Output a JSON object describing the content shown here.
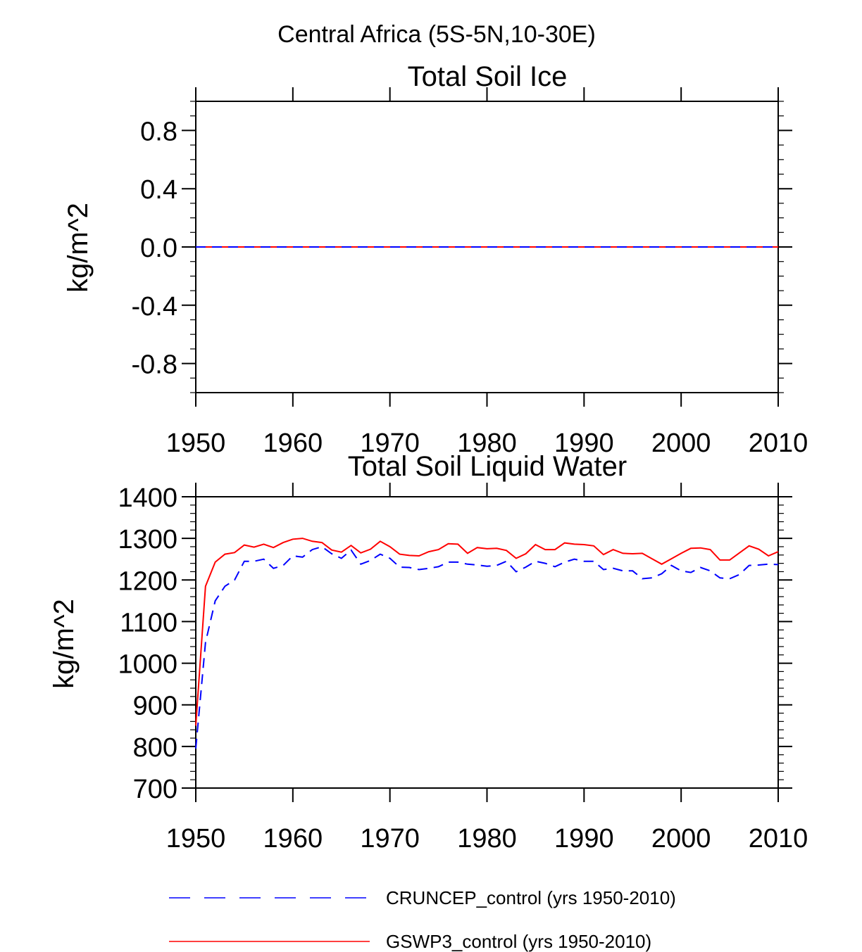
{
  "figure_title": "Central Africa (5S-5N,10-30E)",
  "colors": {
    "cruncep": "#0000ff",
    "gswp3": "#ff0000",
    "axis": "#000000"
  },
  "legend": [
    {
      "label": "CRUNCEP_control (yrs 1950-2010)",
      "style": "dashed",
      "color": "#0000ff"
    },
    {
      "label": "GSWP3_control (yrs 1950-2010)",
      "style": "solid",
      "color": "#ff0000"
    }
  ],
  "chart_data": [
    {
      "type": "line",
      "title": "Total Soil Ice",
      "xlabel": "",
      "ylabel": "kg/m^2",
      "xlim": [
        1950,
        2010
      ],
      "ylim": [
        -1.0,
        1.0
      ],
      "xticks": [
        1950,
        1960,
        1970,
        1980,
        1990,
        2000,
        2010
      ],
      "yticks": [
        -0.8,
        -0.4,
        0.0,
        0.4,
        0.8
      ],
      "ytick_labels": [
        "-0.8",
        "-0.4",
        "0.0",
        "0.4",
        "0.8"
      ],
      "series": [
        {
          "name": "GSWP3_control (yrs 1950-2010)",
          "x": [
            1950,
            2010
          ],
          "values": [
            0,
            0
          ]
        },
        {
          "name": "CRUNCEP_control (yrs 1950-2010)",
          "x": [
            1950,
            2010
          ],
          "values": [
            0,
            0
          ]
        }
      ]
    },
    {
      "type": "line",
      "title": "Total Soil Liquid Water",
      "xlabel": "",
      "ylabel": "kg/m^2",
      "xlim": [
        1950,
        2010
      ],
      "ylim": [
        700,
        1400
      ],
      "xticks": [
        1950,
        1960,
        1970,
        1980,
        1990,
        2000,
        2010
      ],
      "yticks": [
        700,
        800,
        900,
        1000,
        1100,
        1200,
        1300,
        1400
      ],
      "ytick_labels": [
        "700",
        "800",
        "900",
        "1000",
        "1100",
        "1200",
        "1300",
        "1400"
      ],
      "series": [
        {
          "name": "GSWP3_control (yrs 1950-2010)",
          "x": [
            1950,
            1951,
            1952,
            1953,
            1954,
            1955,
            1956,
            1957,
            1958,
            1959,
            1960,
            1961,
            1962,
            1963,
            1964,
            1965,
            1966,
            1967,
            1968,
            1969,
            1970,
            1971,
            1972,
            1973,
            1974,
            1975,
            1976,
            1977,
            1978,
            1979,
            1980,
            1981,
            1982,
            1983,
            1984,
            1985,
            1986,
            1987,
            1988,
            1989,
            1990,
            1991,
            1992,
            1993,
            1994,
            1995,
            1996,
            1997,
            1998,
            1999,
            2000,
            2001,
            2002,
            2003,
            2004,
            2005,
            2006,
            2007,
            2008,
            2009,
            2010
          ],
          "values": [
            850,
            1185,
            1243,
            1262,
            1266,
            1284,
            1279,
            1286,
            1278,
            1290,
            1298,
            1300,
            1293,
            1290,
            1272,
            1267,
            1283,
            1265,
            1274,
            1293,
            1280,
            1262,
            1259,
            1258,
            1268,
            1273,
            1287,
            1286,
            1264,
            1278,
            1275,
            1276,
            1271,
            1252,
            1263,
            1285,
            1273,
            1273,
            1289,
            1286,
            1285,
            1282,
            1261,
            1273,
            1264,
            1263,
            1264,
            1251,
            1238,
            1251,
            1264,
            1276,
            1277,
            1273,
            1248,
            1248,
            1265,
            1282,
            1274,
            1258,
            1268
          ]
        },
        {
          "name": "CRUNCEP_control (yrs 1950-2010)",
          "x": [
            1950,
            1951,
            1952,
            1953,
            1954,
            1955,
            1956,
            1957,
            1958,
            1959,
            1960,
            1961,
            1962,
            1963,
            1964,
            1965,
            1966,
            1967,
            1968,
            1969,
            1970,
            1971,
            1972,
            1973,
            1974,
            1975,
            1976,
            1977,
            1978,
            1979,
            1980,
            1981,
            1982,
            1983,
            1984,
            1985,
            1986,
            1987,
            1988,
            1989,
            1990,
            1991,
            1992,
            1993,
            1994,
            1995,
            1996,
            1997,
            1998,
            1999,
            2000,
            2001,
            2002,
            2003,
            2004,
            2005,
            2006,
            2007,
            2008,
            2009,
            2010
          ],
          "values": [
            795,
            1050,
            1150,
            1185,
            1200,
            1245,
            1245,
            1250,
            1228,
            1235,
            1258,
            1255,
            1273,
            1280,
            1263,
            1252,
            1272,
            1238,
            1247,
            1262,
            1252,
            1231,
            1230,
            1225,
            1228,
            1232,
            1243,
            1243,
            1238,
            1236,
            1233,
            1235,
            1245,
            1220,
            1231,
            1245,
            1240,
            1232,
            1243,
            1250,
            1245,
            1245,
            1225,
            1228,
            1222,
            1222,
            1203,
            1205,
            1215,
            1235,
            1222,
            1218,
            1230,
            1222,
            1205,
            1203,
            1213,
            1235,
            1236,
            1238,
            1237
          ]
        }
      ]
    }
  ]
}
